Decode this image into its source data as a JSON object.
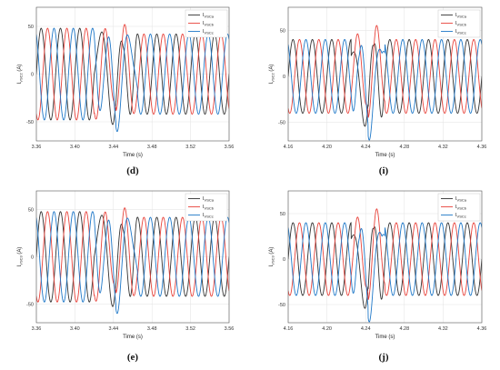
{
  "chart_data": [
    {
      "type": "line",
      "panel_label": "(d)",
      "xlabel": "Time (s)",
      "ylabel_main": "I",
      "ylabel_sub": "VSC2",
      "ylabel_unit": " (A)",
      "xlim": [
        3.36,
        3.56
      ],
      "ylim": [
        -70,
        70
      ],
      "x_ticks": [
        3.36,
        3.4,
        3.44,
        3.48,
        3.52,
        3.56
      ],
      "x_tick_labels": [
        "3.36",
        "3.40",
        "3.44",
        "3.48",
        "3.52",
        "3.56"
      ],
      "y_ticks": [
        -50,
        0,
        50
      ],
      "y_tick_labels": [
        "-50",
        "0",
        "50"
      ],
      "grid": true,
      "legend_position": "top-right",
      "series": [
        {
          "name_main": "I",
          "name_sub": "VSCa",
          "color": "#333333",
          "phase_deg": 0
        },
        {
          "name_main": "I",
          "name_sub": "VSCb",
          "color": "#e8423a",
          "phase_deg": -120
        },
        {
          "name_main": "I",
          "name_sub": "VSCc",
          "color": "#1f78c8",
          "phase_deg": 120
        }
      ],
      "frequency_hz": 50,
      "pre_amplitude": 48,
      "post_amplitude": 42,
      "fault_start": 3.42,
      "fault_end": 3.465,
      "transient_peak": 62
    },
    {
      "type": "line",
      "panel_label": "(i)",
      "xlabel": "Time (s)",
      "ylabel_main": "I",
      "ylabel_sub": "VSC2",
      "ylabel_unit": " (A)",
      "xlim": [
        4.16,
        4.36
      ],
      "ylim": [
        -70,
        75
      ],
      "x_ticks": [
        4.16,
        4.2,
        4.24,
        4.28,
        4.32,
        4.36
      ],
      "x_tick_labels": [
        "4.16",
        "4.20",
        "4.24",
        "4.28",
        "4.32",
        "4.36"
      ],
      "y_ticks": [
        -50,
        0,
        50
      ],
      "y_tick_labels": [
        "-50",
        "0",
        "50"
      ],
      "grid": true,
      "legend_position": "top-right",
      "series": [
        {
          "name_main": "I",
          "name_sub": "VSCa",
          "color": "#333333",
          "phase_deg": 0
        },
        {
          "name_main": "I",
          "name_sub": "VSCb",
          "color": "#e8423a",
          "phase_deg": -120
        },
        {
          "name_main": "I",
          "name_sub": "VSCc",
          "color": "#1f78c8",
          "phase_deg": 120
        }
      ],
      "frequency_hz": 50,
      "pre_amplitude": 40,
      "post_amplitude": 40,
      "fault_start": 4.225,
      "fault_end": 4.26,
      "transient_peak": 72
    },
    {
      "type": "line",
      "panel_label": "(e)",
      "xlabel": "Time (s)",
      "ylabel_main": "I",
      "ylabel_sub": "VSC3",
      "ylabel_unit": " (A)",
      "xlim": [
        3.36,
        3.56
      ],
      "ylim": [
        -70,
        70
      ],
      "x_ticks": [
        3.36,
        3.4,
        3.44,
        3.48,
        3.52,
        3.56
      ],
      "x_tick_labels": [
        "3.36",
        "3.40",
        "3.44",
        "3.48",
        "3.52",
        "3.56"
      ],
      "y_ticks": [
        -50,
        0,
        50
      ],
      "y_tick_labels": [
        "-50",
        "0",
        "50"
      ],
      "grid": true,
      "legend_position": "top-right",
      "series": [
        {
          "name_main": "I",
          "name_sub": "VSCa",
          "color": "#333333",
          "phase_deg": 0
        },
        {
          "name_main": "I",
          "name_sub": "VSCb",
          "color": "#e8423a",
          "phase_deg": -120
        },
        {
          "name_main": "I",
          "name_sub": "VSCc",
          "color": "#1f78c8",
          "phase_deg": 120
        }
      ],
      "frequency_hz": 50,
      "pre_amplitude": 48,
      "post_amplitude": 42,
      "fault_start": 3.42,
      "fault_end": 3.465,
      "transient_peak": 62
    },
    {
      "type": "line",
      "panel_label": "(j)",
      "xlabel": "Time (s)",
      "ylabel_main": "I",
      "ylabel_sub": "VSC3",
      "ylabel_unit": " (A)",
      "xlim": [
        4.16,
        4.36
      ],
      "ylim": [
        -70,
        75
      ],
      "x_ticks": [
        4.16,
        4.2,
        4.24,
        4.28,
        4.32,
        4.36
      ],
      "x_tick_labels": [
        "4.16",
        "4.20",
        "4.24",
        "4.28",
        "4.32",
        "4.36"
      ],
      "y_ticks": [
        -50,
        0,
        50
      ],
      "y_tick_labels": [
        "-50",
        "0",
        "50"
      ],
      "grid": true,
      "legend_position": "top-right",
      "series": [
        {
          "name_main": "I",
          "name_sub": "VSCa",
          "color": "#333333",
          "phase_deg": 0
        },
        {
          "name_main": "I",
          "name_sub": "VSCb",
          "color": "#e8423a",
          "phase_deg": -120
        },
        {
          "name_main": "I",
          "name_sub": "VSCc",
          "color": "#1f78c8",
          "phase_deg": 120
        }
      ],
      "frequency_hz": 50,
      "pre_amplitude": 40,
      "post_amplitude": 40,
      "fault_start": 4.225,
      "fault_end": 4.26,
      "transient_peak": 72
    }
  ]
}
